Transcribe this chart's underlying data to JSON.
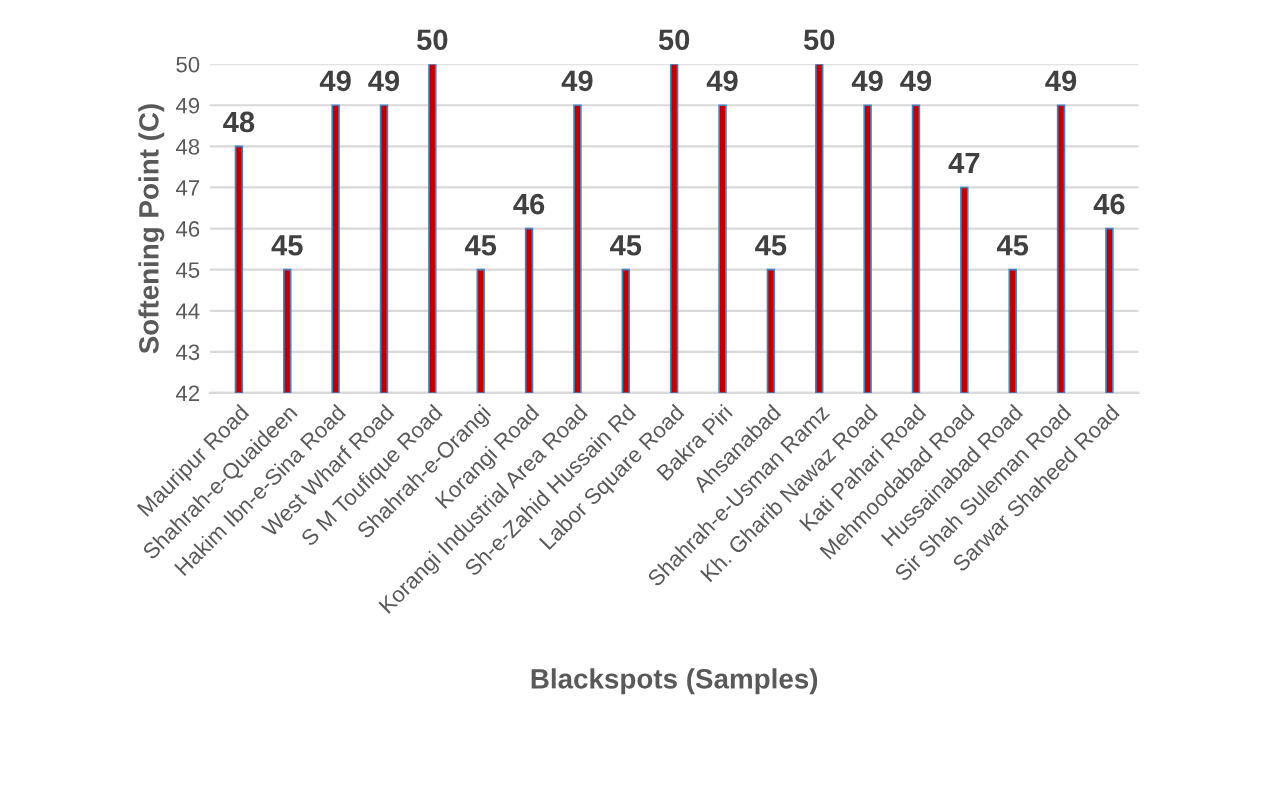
{
  "chart_data": {
    "type": "bar",
    "xlabel": "Blackspots (Samples)",
    "ylabel": "Softening Point (C)",
    "categories": [
      "Mauripur Road",
      "Shahrah-e-Quaideen",
      "Hakim Ibn-e-Sina Road",
      "West Wharf Road",
      "S M Toufique Road",
      "Shahrah-e-Orangi",
      "Korangi Road",
      "Korangi Industrial Area Road",
      "Sh-e-Zahid Hussain Rd",
      "Labor Square Road",
      "Bakra Piri",
      "Ahsanabad",
      "Shahrah-e-Usman Ramz",
      "Kh. Gharib Nawaz Road",
      "Kati Pahari Road",
      "Mehmoodabad Road",
      "Hussainabad Road",
      "Sir Shah Suleman Road",
      "Sarwar Shaheed Road"
    ],
    "values": [
      48,
      45,
      49,
      49,
      50,
      45,
      46,
      49,
      45,
      50,
      49,
      45,
      50,
      49,
      49,
      47,
      45,
      49,
      46
    ],
    "color": "#c00000",
    "ylim": [
      42,
      50
    ],
    "yticks": [
      42,
      43,
      44,
      45,
      46,
      47,
      48,
      49,
      50
    ],
    "grid": "y",
    "data_labels": true
  }
}
